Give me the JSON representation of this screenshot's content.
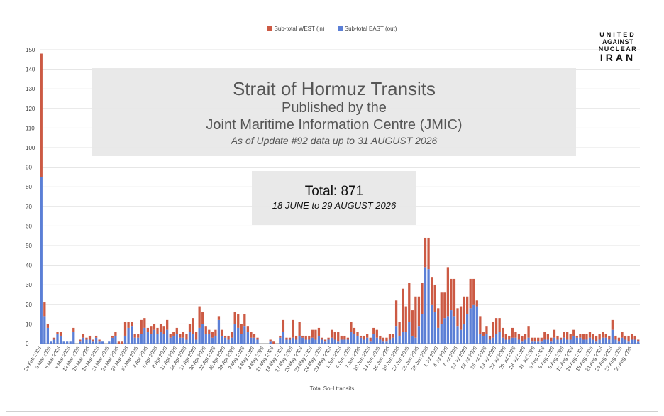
{
  "chart_data": {
    "type": "bar",
    "stacked": true,
    "ylim": [
      0,
      150
    ],
    "yticks": [
      0,
      10,
      20,
      30,
      40,
      50,
      60,
      70,
      80,
      90,
      100,
      110,
      120,
      130,
      140,
      150
    ],
    "xlabel": "Total SoH transits",
    "legend": {
      "placement": "top",
      "entries": [
        "Sub-total WEST (in)",
        "Sub-total EAST (out)"
      ]
    },
    "grid": true,
    "tick_labels": [
      "28 Feb 2026",
      "3 Mar 2026",
      "6 Mar 2026",
      "9 Mar 2026",
      "12 Mar 2026",
      "15 Mar 2026",
      "18 Mar 2026",
      "21 Mar 2026",
      "24 Mar 2026",
      "27 Mar 2026",
      "30 Mar 2026",
      "2 Apr 2026",
      "5 Apr 2026",
      "8 Apr 2026",
      "11 Apr 2026",
      "14 Apr 2026",
      "17 Apr 2026",
      "20 Apr 2026",
      "23 Apr 2026",
      "26 Apr 2026",
      "29 Apr 2026",
      "2 May 2026",
      "5 May 2026",
      "8 May 2026",
      "11 May 2026",
      "14 May 2026",
      "17 May 2026",
      "20 May 2026",
      "23 May 2026",
      "26 May 2026",
      "29 May 2026",
      "1 Jun 2026",
      "4 Jun 2026",
      "7 Jun 2026",
      "10 Jun 2026",
      "13 Jun 2026",
      "16 Jun 2026",
      "19 Jun 2026",
      "22 Jun 2026",
      "25 Jun 2026",
      "28 Jun 2026",
      "1 Jul 2026",
      "4 Jul 2026",
      "7 Jul 2026",
      "10 Jul 2026",
      "13 Jul 2026",
      "16 Jul 2026",
      "19 Jul 2026",
      "22 Jul 2026",
      "25 Jul 2026",
      "28 Jul 2026",
      "31 Jul 2026",
      "3 Aug 2026",
      "6 Aug 2026",
      "9 Aug 2026",
      "12 Aug 2026",
      "15 Aug 2026",
      "18 Aug 2026",
      "21 Aug 2026",
      "24 Aug 2026",
      "27 Aug 2026",
      "30 Aug 2026"
    ],
    "series": [
      {
        "name": "Sub-total EAST (out)",
        "color": "#5b7fd6",
        "values": [
          85,
          14,
          8,
          1,
          2,
          5,
          4,
          1,
          1,
          1,
          6,
          0,
          1,
          3,
          2,
          2,
          1,
          3,
          1,
          1,
          0,
          1,
          3,
          4,
          0,
          0,
          4,
          8,
          9,
          3,
          3,
          5,
          8,
          6,
          5,
          7,
          5,
          6,
          5,
          7,
          3,
          4,
          5,
          3,
          3,
          2,
          6,
          5,
          2,
          8,
          10,
          5,
          5,
          3,
          4,
          12,
          4,
          3,
          2,
          3,
          10,
          8,
          5,
          9,
          6,
          3,
          3,
          2,
          0,
          0,
          0,
          1,
          0,
          0,
          3,
          6,
          2,
          2,
          3,
          2,
          4,
          3,
          2,
          2,
          3,
          2,
          4,
          2,
          1,
          2,
          3,
          2,
          1,
          2,
          2,
          2,
          6,
          5,
          4,
          3,
          2,
          3,
          1,
          5,
          3,
          2,
          1,
          1,
          2,
          3,
          9,
          4,
          6,
          6,
          11,
          4,
          3,
          9,
          15,
          39,
          38,
          20,
          16,
          8,
          10,
          13,
          14,
          17,
          14,
          9,
          7,
          10,
          15,
          18,
          20,
          19,
          5,
          4,
          5,
          2,
          3,
          5,
          6,
          3,
          2,
          2,
          3,
          3,
          2,
          1,
          2,
          3,
          1,
          1,
          1,
          1,
          2,
          2,
          1,
          3,
          2,
          2,
          3,
          2,
          2,
          4,
          3,
          3,
          2,
          2,
          3,
          2,
          1,
          2,
          3,
          3,
          2,
          7,
          2,
          1,
          3,
          2,
          1,
          2,
          2,
          1
        ]
      },
      {
        "name": "Sub-total WEST (in)",
        "color": "#cc5a44",
        "values": [
          63,
          7,
          2,
          0,
          1,
          1,
          2,
          0,
          0,
          0,
          2,
          0,
          1,
          2,
          1,
          2,
          1,
          1,
          1,
          0,
          0,
          0,
          1,
          2,
          1,
          1,
          7,
          3,
          2,
          2,
          2,
          7,
          5,
          2,
          4,
          3,
          3,
          4,
          4,
          5,
          2,
          2,
          3,
          2,
          3,
          3,
          4,
          8,
          4,
          11,
          6,
          4,
          2,
          3,
          3,
          2,
          3,
          1,
          2,
          3,
          6,
          7,
          5,
          6,
          3,
          3,
          2,
          1,
          0,
          0,
          0,
          1,
          1,
          0,
          1,
          6,
          1,
          1,
          9,
          2,
          7,
          1,
          2,
          2,
          4,
          5,
          4,
          1,
          1,
          1,
          4,
          4,
          5,
          2,
          2,
          1,
          5,
          3,
          2,
          1,
          2,
          2,
          2,
          3,
          4,
          2,
          2,
          2,
          3,
          2,
          13,
          7,
          22,
          13,
          20,
          13,
          21,
          15,
          16,
          15,
          16,
          14,
          14,
          10,
          16,
          13,
          25,
          16,
          19,
          9,
          12,
          14,
          9,
          15,
          13,
          3,
          9,
          2,
          4,
          2,
          8,
          8,
          7,
          5,
          3,
          2,
          5,
          3,
          3,
          3,
          3,
          6,
          2,
          2,
          2,
          2,
          4,
          3,
          2,
          4,
          2,
          1,
          3,
          4,
          3,
          3,
          1,
          2,
          3,
          3,
          3,
          3,
          3,
          3,
          3,
          2,
          2,
          5,
          2,
          2,
          3,
          2,
          3,
          3,
          2,
          1
        ]
      }
    ]
  },
  "logo_text": [
    "UNITED",
    "AGAINST",
    "NUCLEAR",
    "IRAN"
  ],
  "overlay": {
    "title": "Strait of Hormuz Transits",
    "subtitle1": "Published by the",
    "subtitle2": "Joint Maritime Information Centre (JMIC)",
    "asof": "As of Update #92 data up to 31 AUGUST 2026",
    "total": "Total: 871",
    "range": "18 JUNE to 29 AUGUST 2026"
  }
}
